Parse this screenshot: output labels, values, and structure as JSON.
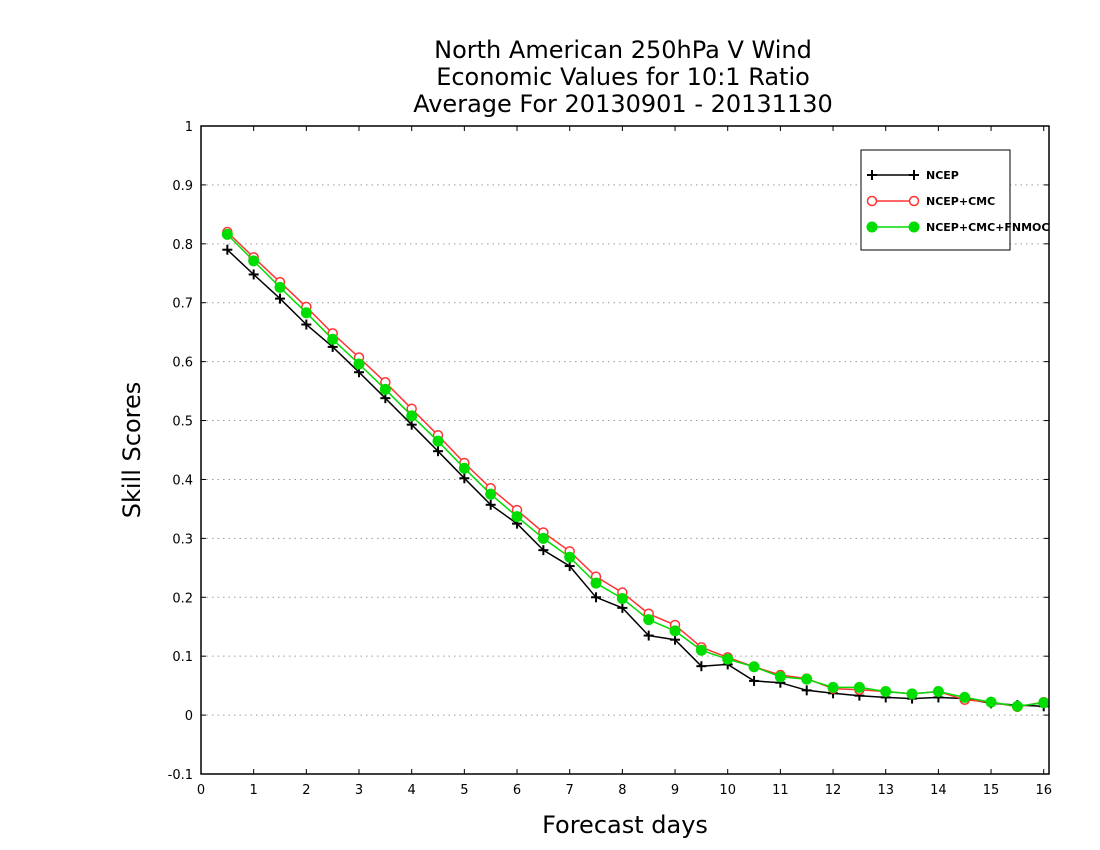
{
  "chart_data": {
    "type": "line",
    "title": [
      "North American 250hPa V Wind",
      "Economic Values for 10:1 Ratio",
      "Average For 20130901 - 20131130"
    ],
    "xlabel": "Forecast days",
    "ylabel": "Skill Scores",
    "xlim": [
      0,
      16.1
    ],
    "ylim": [
      -0.1,
      1
    ],
    "xticks": [
      0,
      1,
      2,
      3,
      4,
      5,
      6,
      7,
      8,
      9,
      10,
      11,
      12,
      13,
      14,
      15,
      16
    ],
    "xtick_labels": [
      "0",
      "1",
      "2",
      "3",
      "4",
      "5",
      "6",
      "7",
      "8",
      "9",
      "10",
      "11",
      "12",
      "13",
      "14",
      "15",
      "16"
    ],
    "yticks": [
      -0.1,
      0,
      0.1,
      0.2,
      0.3,
      0.4,
      0.5,
      0.6,
      0.7,
      0.8,
      0.9,
      1
    ],
    "ytick_labels": [
      "-0.1",
      "0",
      "0.1",
      "0.2",
      "0.3",
      "0.4",
      "0.5",
      "0.6",
      "0.7",
      "0.8",
      "0.9",
      "1"
    ],
    "grid": "horizontal-dotted",
    "legend_position": "top-right",
    "x": [
      0.5,
      1,
      1.5,
      2,
      2.5,
      3,
      3.5,
      4,
      4.5,
      5,
      5.5,
      6,
      6.5,
      7,
      7.5,
      8,
      8.5,
      9,
      9.5,
      10,
      10.5,
      11,
      11.5,
      12,
      12.5,
      13,
      13.5,
      14,
      14.5,
      15,
      15.5,
      16
    ],
    "series": [
      {
        "name": "NCEP",
        "color": "#000000",
        "marker": "plus",
        "values": [
          0.79,
          0.748,
          0.707,
          0.663,
          0.625,
          0.582,
          0.538,
          0.493,
          0.448,
          0.402,
          0.357,
          0.325,
          0.28,
          0.253,
          0.2,
          0.182,
          0.135,
          0.128,
          0.083,
          0.086,
          0.058,
          0.055,
          0.042,
          0.037,
          0.033,
          0.03,
          0.028,
          0.03,
          0.028,
          0.02,
          0.017,
          0.015
        ]
      },
      {
        "name": "NCEP+CMC",
        "color": "#ff3333",
        "marker": "open-circle",
        "values": [
          0.82,
          0.777,
          0.735,
          0.693,
          0.648,
          0.607,
          0.565,
          0.52,
          0.475,
          0.428,
          0.385,
          0.348,
          0.31,
          0.278,
          0.235,
          0.208,
          0.172,
          0.153,
          0.115,
          0.098,
          0.082,
          0.068,
          0.062,
          0.045,
          0.043,
          0.04,
          0.036,
          0.04,
          0.026,
          0.022,
          0.014,
          0.022
        ]
      },
      {
        "name": "NCEP+CMC+FNMOC",
        "color": "#00dd00",
        "marker": "filled-circle",
        "values": [
          0.816,
          0.771,
          0.726,
          0.683,
          0.638,
          0.596,
          0.553,
          0.508,
          0.465,
          0.419,
          0.375,
          0.337,
          0.3,
          0.268,
          0.224,
          0.198,
          0.162,
          0.143,
          0.11,
          0.095,
          0.082,
          0.065,
          0.061,
          0.047,
          0.047,
          0.04,
          0.036,
          0.04,
          0.03,
          0.022,
          0.015,
          0.021
        ]
      }
    ]
  }
}
